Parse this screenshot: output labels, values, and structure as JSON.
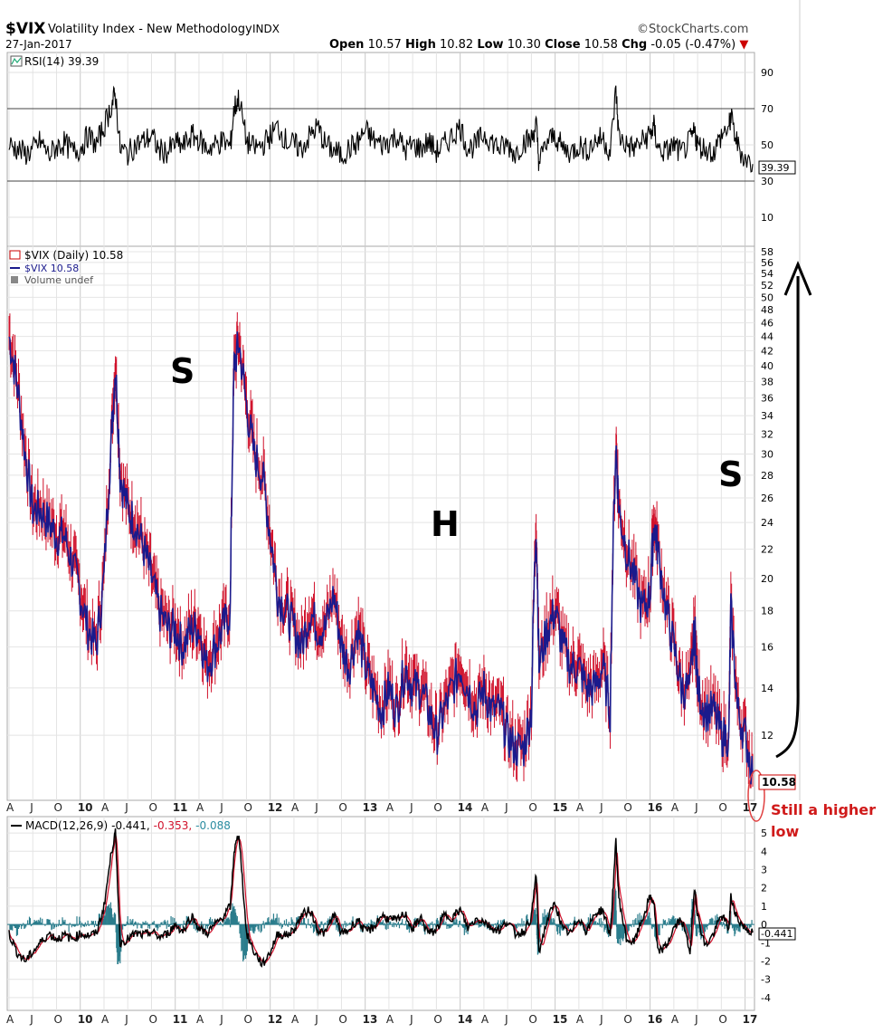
{
  "header": {
    "symbol": "$VIX",
    "name": "Volatility Index - New Methodology",
    "exchange": "INDX",
    "date": "27-Jan-2017",
    "source": "©StockCharts.com",
    "open_label": "Open",
    "open": "10.57",
    "high_label": "High",
    "high": "10.82",
    "low_label": "Low",
    "low": "10.30",
    "close_label": "Close",
    "close": "10.58",
    "chg_label": "Chg",
    "chg": "-0.05 (-0.47%)"
  },
  "rsi": {
    "legend": "RSI(14) 39.39",
    "last_value": "39.39",
    "overbought": 70,
    "oversold": 30,
    "ylim": [
      0,
      100
    ],
    "ticks": [
      "90",
      "70",
      "50",
      "30",
      "10"
    ]
  },
  "price": {
    "legend1": "$VIX (Daily) 10.58",
    "legend2": "$VIX 10.58",
    "legend3": "Volume undef",
    "last_value": "10.58",
    "ylim": [
      10,
      58
    ],
    "ticks": [
      "58",
      "56",
      "54",
      "52",
      "50",
      "48",
      "46",
      "44",
      "42",
      "40",
      "38",
      "36",
      "34",
      "32",
      "30",
      "28",
      "26",
      "24",
      "22",
      "20",
      "18",
      "16",
      "14",
      "12"
    ],
    "annotations": {
      "left_shoulder": "S",
      "head": "H",
      "right_shoulder": "S",
      "note_line1": "Still a higher",
      "note_line2": "low"
    }
  },
  "macd": {
    "legend_prefix": "MACD(12,26,9)",
    "macd_value": "-0.441",
    "signal_value": "-0.353",
    "hist_value": "-0.088",
    "last_value": "-0.441",
    "ylim": [
      -4.5,
      5.5
    ],
    "ticks": [
      "5",
      "4",
      "3",
      "2",
      "1",
      "0",
      "-1",
      "-2",
      "-3",
      "-4"
    ]
  },
  "x_axis": {
    "labels": [
      "A",
      "J",
      "O",
      "10",
      "A",
      "J",
      "O",
      "11",
      "A",
      "J",
      "O",
      "12",
      "A",
      "J",
      "O",
      "13",
      "A",
      "J",
      "O",
      "14",
      "A",
      "J",
      "O",
      "15",
      "A",
      "J",
      "O",
      "16",
      "A",
      "J",
      "O",
      "17"
    ]
  },
  "colors": {
    "price_line": "#1a1a8c",
    "price_hl": "#d0102a",
    "macd_line": "#000000",
    "signal_line": "#d0102a",
    "hist": "#2b7d8c",
    "grid": "#dcdcdc",
    "note": "#d01a1a"
  },
  "chart_data": {
    "type": "line",
    "title": "$VIX Volatility Index - New Methodology",
    "x_unit": "years",
    "x_range": [
      2009.25,
      2017.08
    ],
    "series": [
      {
        "name": "$VIX",
        "x": [
          2009.25,
          2009.33,
          2009.42,
          2009.5,
          2009.58,
          2009.67,
          2009.75,
          2009.83,
          2009.92,
          2010.0,
          2010.08,
          2010.17,
          2010.25,
          2010.33,
          2010.37,
          2010.42,
          2010.5,
          2010.58,
          2010.67,
          2010.75,
          2010.83,
          2010.92,
          2011.0,
          2011.08,
          2011.17,
          2011.25,
          2011.33,
          2011.42,
          2011.5,
          2011.58,
          2011.62,
          2011.67,
          2011.75,
          2011.83,
          2011.92,
          2012.0,
          2012.08,
          2012.17,
          2012.25,
          2012.33,
          2012.42,
          2012.5,
          2012.58,
          2012.67,
          2012.75,
          2012.83,
          2012.92,
          2013.0,
          2013.08,
          2013.17,
          2013.25,
          2013.33,
          2013.42,
          2013.5,
          2013.58,
          2013.67,
          2013.75,
          2013.83,
          2013.92,
          2014.0,
          2014.08,
          2014.17,
          2014.25,
          2014.33,
          2014.42,
          2014.5,
          2014.58,
          2014.67,
          2014.75,
          2014.8,
          2014.83,
          2014.92,
          2015.0,
          2015.08,
          2015.17,
          2015.25,
          2015.33,
          2015.42,
          2015.5,
          2015.58,
          2015.64,
          2015.67,
          2015.75,
          2015.83,
          2015.92,
          2016.0,
          2016.04,
          2016.08,
          2016.17,
          2016.25,
          2016.33,
          2016.42,
          2016.47,
          2016.5,
          2016.58,
          2016.67,
          2016.75,
          2016.83,
          2016.85,
          2016.92,
          2017.0,
          2017.08
        ],
        "values": [
          44,
          38,
          30,
          25,
          25,
          24,
          23,
          23,
          21,
          19,
          17,
          16,
          20,
          32,
          40,
          28,
          25,
          24,
          22,
          20,
          18,
          17,
          17,
          16,
          17,
          17,
          15,
          16,
          17,
          18,
          40,
          43,
          35,
          30,
          28,
          23,
          19,
          18,
          17,
          16,
          18,
          17,
          17,
          19,
          16,
          15,
          17,
          15,
          14,
          13,
          14,
          13,
          15,
          14,
          14,
          13,
          12,
          13,
          14,
          15,
          14,
          13,
          14,
          13,
          13,
          12,
          11.5,
          11.5,
          13,
          24,
          15,
          17,
          18,
          16,
          15,
          15,
          14,
          14,
          15,
          13,
          31,
          25,
          22,
          20,
          18,
          19,
          24,
          22,
          18,
          16,
          14,
          14,
          17,
          14,
          13,
          13,
          12,
          12,
          18,
          13,
          12,
          10.58
        ]
      },
      {
        "name": "RSI(14)",
        "values": [
          50,
          48,
          45,
          47,
          52,
          44,
          49,
          51,
          46,
          48,
          55,
          50,
          60,
          72,
          78,
          48,
          45,
          50,
          52,
          55,
          47,
          46,
          51,
          49,
          55,
          53,
          48,
          50,
          52,
          49,
          70,
          76,
          52,
          48,
          50,
          55,
          60,
          52,
          50,
          48,
          55,
          60,
          50,
          47,
          44,
          48,
          51,
          58,
          53,
          50,
          52,
          55,
          47,
          50,
          48,
          52,
          46,
          50,
          55,
          60,
          48,
          50,
          56,
          52,
          48,
          50,
          45,
          52,
          53,
          62,
          40,
          52,
          55,
          48,
          46,
          50,
          47,
          52,
          54,
          46,
          80,
          55,
          50,
          48,
          52,
          56,
          60,
          48,
          46,
          50,
          45,
          52,
          57,
          50,
          48,
          46,
          55,
          60,
          65,
          50,
          42,
          39.39
        ]
      },
      {
        "name": "MACD(12,26,9)",
        "values": [
          -0.5,
          -1.5,
          -2,
          -1.5,
          -1,
          -0.5,
          -0.8,
          -0.6,
          -0.8,
          -0.5,
          -0.6,
          -0.5,
          1,
          4,
          5,
          -1,
          -0.8,
          -0.5,
          -0.6,
          -0.4,
          -0.7,
          -0.5,
          0,
          -0.4,
          0.5,
          -0.2,
          -0.5,
          0,
          0.4,
          1,
          4,
          5,
          -0.5,
          -1.5,
          -2.2,
          -1.5,
          -0.5,
          -0.6,
          -0.3,
          0.5,
          0.8,
          -0.3,
          -0.5,
          0.6,
          -0.5,
          -0.3,
          0.3,
          -0.4,
          -0.2,
          0.5,
          0.3,
          0.2,
          0.6,
          -0.3,
          0.4,
          -0.5,
          -0.3,
          0.5,
          0.4,
          0.8,
          -0.2,
          0.3,
          0.2,
          -0.2,
          -0.3,
          0.2,
          -0.5,
          -0.4,
          0.4,
          2.8,
          -1.5,
          0.3,
          1.2,
          -0.3,
          -0.5,
          0.4,
          -0.4,
          0.6,
          0.8,
          -0.6,
          4.5,
          1.5,
          -0.8,
          -1,
          0.3,
          1.5,
          1.2,
          -1.5,
          -1.2,
          -0.2,
          0.3,
          -1.5,
          2,
          0.5,
          -1.2,
          -0.5,
          0.5,
          -0.2,
          1.5,
          0.3,
          -0.2,
          -0.441
        ]
      }
    ],
    "ylim_price": [
      10,
      58
    ],
    "ylim_rsi": [
      0,
      100
    ],
    "ylim_macd": [
      -4.5,
      5.5
    ],
    "grid": true,
    "legend_placement": "top-left"
  }
}
